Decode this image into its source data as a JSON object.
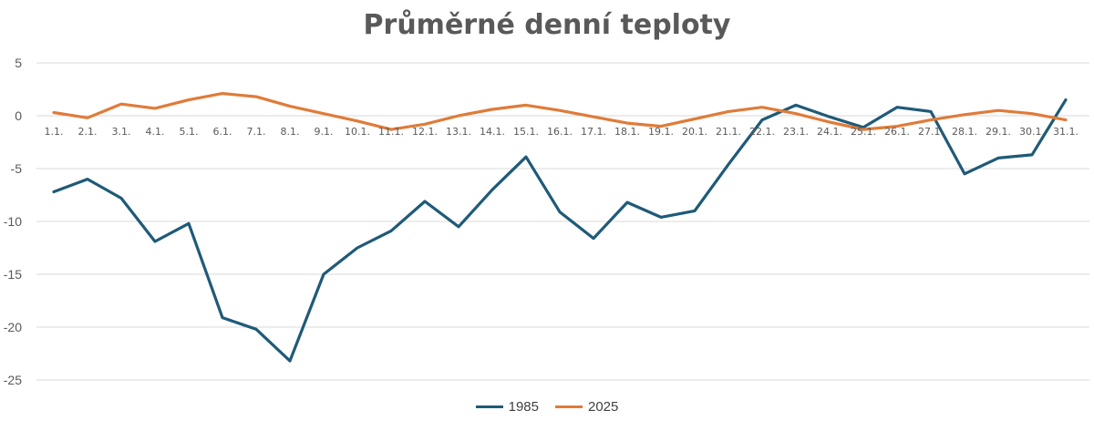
{
  "chart_data": {
    "type": "line",
    "title": "Průměrné denní teploty",
    "categories": [
      "1.1.",
      "2.1.",
      "3.1.",
      "4.1.",
      "5.1.",
      "6.1.",
      "7.1.",
      "8.1.",
      "9.1.",
      "10.1.",
      "11.1.",
      "12.1.",
      "13.1.",
      "14.1.",
      "15.1.",
      "16.1.",
      "17.1.",
      "18.1.",
      "19.1.",
      "20.1.",
      "21.1.",
      "22.1.",
      "23.1.",
      "24.1.",
      "25.1.",
      "26.1.",
      "27.1.",
      "28.1.",
      "29.1.",
      "30.1.",
      "31.1."
    ],
    "series": [
      {
        "name": "1985",
        "color": "#1f5a78",
        "values": [
          -7.2,
          -6.0,
          -7.8,
          -11.9,
          -10.2,
          -19.1,
          -20.2,
          -23.2,
          -15.0,
          -12.5,
          -10.9,
          -8.1,
          -10.5,
          -7.0,
          -3.9,
          -9.1,
          -11.6,
          -8.2,
          -9.6,
          -9.0,
          -4.6,
          -0.4,
          1.0,
          -0.1,
          -1.1,
          0.8,
          0.4,
          -5.5,
          -4.0,
          -3.7,
          1.5
        ]
      },
      {
        "name": "2025",
        "color": "#e07b39",
        "values": [
          0.3,
          -0.2,
          1.1,
          0.7,
          1.5,
          2.1,
          1.8,
          0.9,
          0.2,
          -0.5,
          -1.3,
          -0.8,
          0.0,
          0.6,
          1.0,
          0.5,
          -0.1,
          -0.7,
          -1.0,
          -0.3,
          0.4,
          0.8,
          0.2,
          -0.6,
          -1.3,
          -1.0,
          -0.4,
          0.1,
          0.5,
          0.2,
          -0.4
        ]
      }
    ],
    "ylim": [
      -25,
      5
    ],
    "yticks": [
      5,
      0,
      -5,
      -10,
      -15,
      -20,
      -25
    ],
    "grid": true,
    "legend": "bottom-center",
    "xlabel": "",
    "ylabel": ""
  }
}
